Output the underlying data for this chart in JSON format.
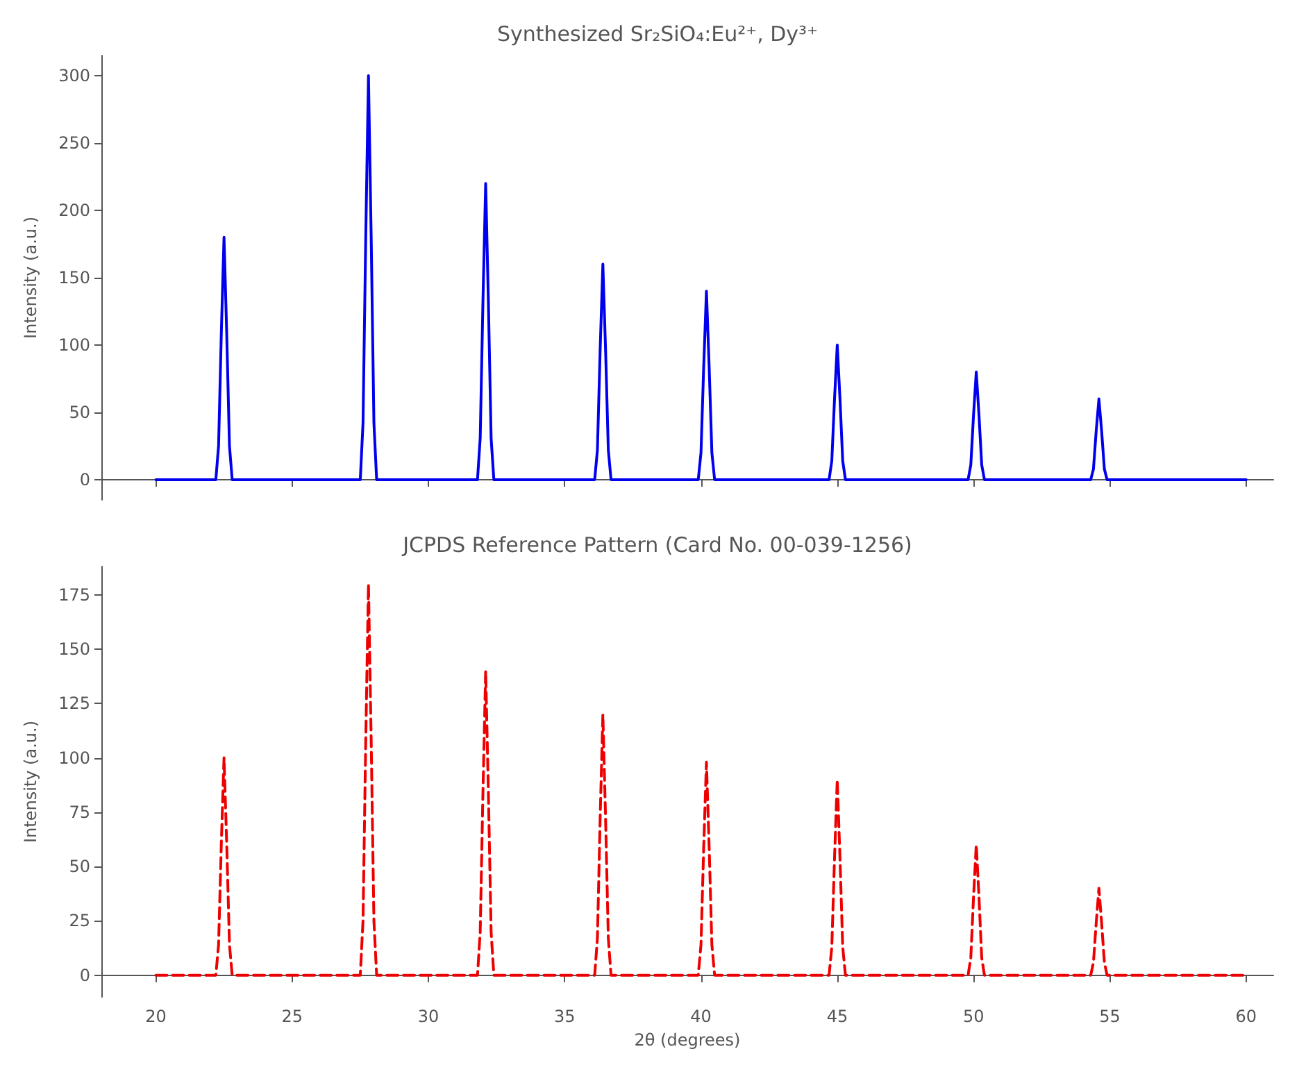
{
  "chart_data": [
    {
      "type": "line",
      "title": "Synthesized Sr₂SiO₄:Eu²⁺, Dy³⁺",
      "ylabel": "Intensity (a.u.)",
      "xlim": [
        18,
        61
      ],
      "xticks": [
        20,
        25,
        30,
        35,
        40,
        45,
        50,
        55,
        60
      ],
      "ylim": [
        -15,
        315
      ],
      "yticks": [
        0,
        50,
        100,
        150,
        200,
        250,
        300
      ],
      "tick_labels": "y",
      "marker": "none",
      "line_style": "solid",
      "series": [
        {
          "color": "#0000ee",
          "x": [
            20,
            22.2,
            22.3,
            22.4,
            22.5,
            22.6,
            22.7,
            22.8,
            27.5,
            27.6,
            27.7,
            27.8,
            27.9,
            28.0,
            28.1,
            31.8,
            31.9,
            32.0,
            32.1,
            32.2,
            32.3,
            32.4,
            36.1,
            36.2,
            36.3,
            36.4,
            36.5,
            36.6,
            36.7,
            39.9,
            40.0,
            40.1,
            40.2,
            40.3,
            40.4,
            40.5,
            44.7,
            44.8,
            44.9,
            45.0,
            45.1,
            45.2,
            45.3,
            49.8,
            49.9,
            50.0,
            50.1,
            50.2,
            50.3,
            50.4,
            54.3,
            54.4,
            54.5,
            54.6,
            54.7,
            54.8,
            54.9,
            60
          ],
          "values": [
            0,
            0,
            25,
            108,
            180,
            108,
            25,
            0,
            0,
            42,
            180,
            300,
            180,
            42,
            0,
            0,
            31,
            132,
            220,
            132,
            31,
            0,
            0,
            22,
            96,
            160,
            96,
            22,
            0,
            0,
            20,
            84,
            140,
            84,
            20,
            0,
            0,
            14,
            60,
            100,
            60,
            14,
            0,
            0,
            11,
            48,
            80,
            48,
            11,
            0,
            0,
            8,
            36,
            60,
            36,
            8,
            0,
            0
          ]
        }
      ]
    },
    {
      "type": "line",
      "title": "JCPDS Reference Pattern (Card No. 00-039-1256)",
      "xlabel": "2θ (degrees)",
      "ylabel": "Intensity (a.u.)",
      "xlim": [
        18,
        61
      ],
      "xticks": [
        20,
        25,
        30,
        35,
        40,
        45,
        50,
        55,
        60
      ],
      "ylim": [
        -10,
        188
      ],
      "yticks": [
        0,
        25,
        50,
        75,
        100,
        125,
        150,
        175
      ],
      "marker": "none",
      "line_style": "dashed",
      "series": [
        {
          "color": "#ee0000",
          "x": [
            20,
            22.2,
            22.3,
            22.4,
            22.5,
            22.6,
            22.7,
            22.8,
            27.5,
            27.6,
            27.7,
            27.8,
            27.9,
            28.0,
            28.1,
            31.8,
            31.9,
            32.0,
            32.1,
            32.2,
            32.3,
            32.4,
            36.1,
            36.2,
            36.3,
            36.4,
            36.5,
            36.6,
            36.7,
            39.9,
            40.0,
            40.1,
            40.2,
            40.3,
            40.4,
            40.5,
            44.7,
            44.8,
            44.9,
            45.0,
            45.1,
            45.2,
            45.3,
            49.8,
            49.9,
            50.0,
            50.1,
            50.2,
            50.3,
            50.4,
            54.3,
            54.4,
            54.5,
            54.6,
            54.7,
            54.8,
            54.9,
            60
          ],
          "values": [
            0,
            0,
            14,
            60,
            100,
            60,
            14,
            0,
            0,
            25,
            108,
            180,
            108,
            25,
            0,
            0,
            20,
            84,
            140,
            84,
            20,
            0,
            0,
            17,
            72,
            120,
            72,
            17,
            0,
            0,
            14,
            59,
            98,
            59,
            14,
            0,
            0,
            13,
            54,
            90,
            54,
            13,
            0,
            0,
            8,
            36,
            60,
            36,
            8,
            0,
            0,
            6,
            24,
            40,
            24,
            6,
            0,
            0
          ]
        }
      ]
    }
  ]
}
